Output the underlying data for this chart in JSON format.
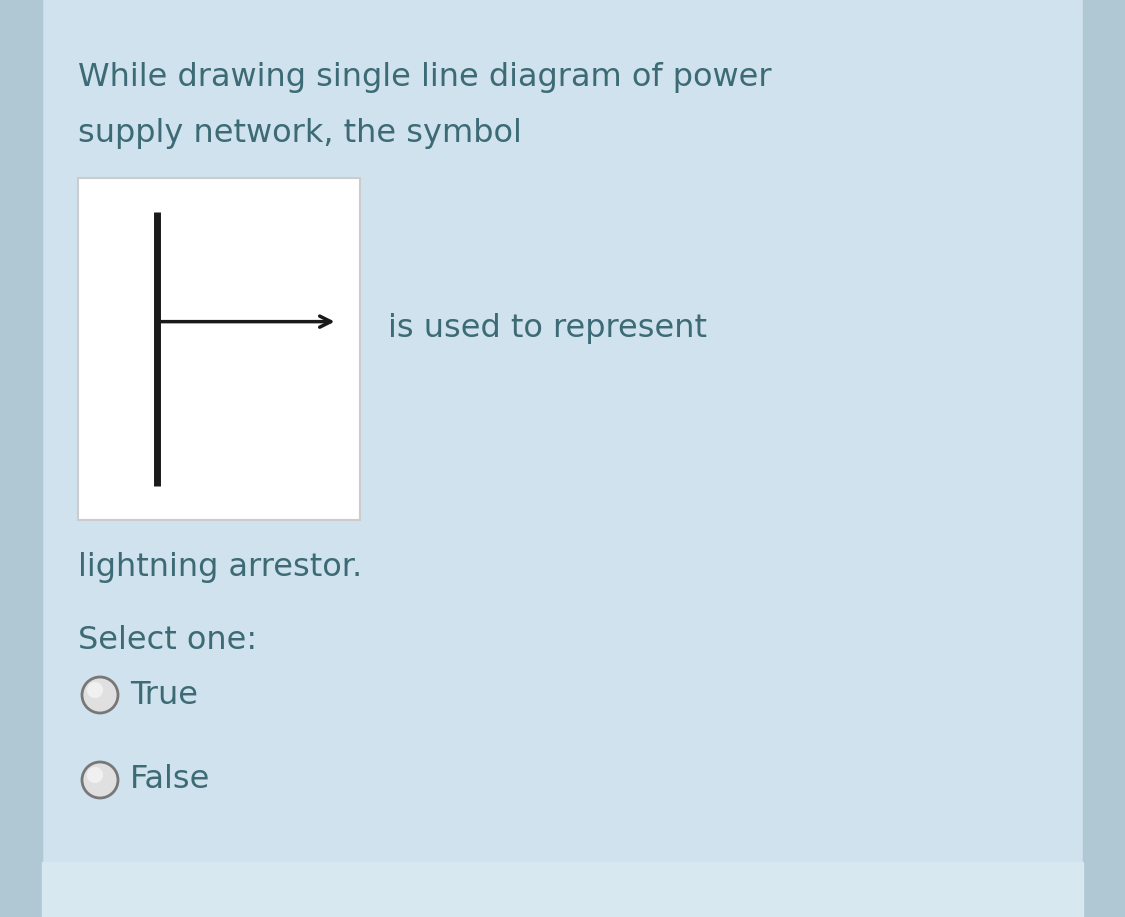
{
  "bg_color": "#cfe2ee",
  "card_color": "#ffffff",
  "text_color": "#3d6b75",
  "bottom_bar_color": "#b8cdd8",
  "side_bar_color": "#b0c8d4",
  "title_line1": "While drawing single line diagram of power",
  "title_line2": "supply network, the symbol",
  "after_symbol_text": "is used to represent",
  "below_symbol_text": "lightning arrestor.",
  "select_one_label": "Select one:",
  "option_true": "True",
  "option_false": "False",
  "title_fontsize": 23,
  "body_fontsize": 23,
  "option_fontsize": 23,
  "fig_width": 11.25,
  "fig_height": 9.17,
  "dpi": 100
}
